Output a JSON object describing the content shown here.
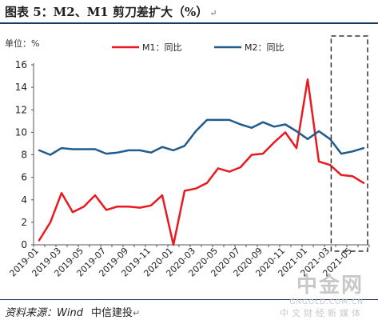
{
  "figure_title": "图表 5：M2、M1 剪刀差扩大（%）",
  "edit_mark": "↵",
  "source_label": "资料来源：Wind",
  "source_org": "中信建投",
  "watermark": {
    "brand": "中金网",
    "url": "GNGOLD.COM.CN",
    "slogan": "中文财经新媒体"
  },
  "colors": {
    "m1": "#e8191f",
    "m2": "#1f5c8c",
    "box": "#333333"
  },
  "chart_data": {
    "type": "line",
    "unit_label": "单位：%",
    "ylim": [
      0,
      16
    ],
    "yticks": [
      0,
      2,
      4,
      6,
      8,
      10,
      12,
      14,
      16
    ],
    "x": [
      "2019-01",
      "2019-02",
      "2019-03",
      "2019-04",
      "2019-05",
      "2019-06",
      "2019-07",
      "2019-08",
      "2019-09",
      "2019-10",
      "2019-11",
      "2019-12",
      "2020-01",
      "2020-02",
      "2020-03",
      "2020-04",
      "2020-05",
      "2020-06",
      "2020-07",
      "2020-08",
      "2020-09",
      "2020-10",
      "2020-11",
      "2020-12",
      "2021-01",
      "2021-02",
      "2021-03",
      "2021-04",
      "2021-05",
      "2021-06"
    ],
    "xtick_labels": [
      "2019-01",
      "2019-03",
      "2019-05",
      "2019-07",
      "2019-09",
      "2019-11",
      "2020-01",
      "2020-03",
      "2020-05",
      "2020-07",
      "2020-09",
      "2020-11",
      "2021-01",
      "2021-03",
      "2021-05"
    ],
    "legend_placement": "top",
    "grid": false,
    "series": [
      {
        "name": "M1：同比",
        "values": [
          0.4,
          2.0,
          4.6,
          2.9,
          3.4,
          4.4,
          3.1,
          3.4,
          3.4,
          3.3,
          3.5,
          4.4,
          0.0,
          4.8,
          5.0,
          5.5,
          6.8,
          6.5,
          6.9,
          8.0,
          8.1,
          9.1,
          10.0,
          8.6,
          14.7,
          7.4,
          7.1,
          6.2,
          6.1,
          5.5
        ]
      },
      {
        "name": "M2：同比",
        "values": [
          8.4,
          8.0,
          8.6,
          8.5,
          8.5,
          8.5,
          8.1,
          8.2,
          8.4,
          8.4,
          8.2,
          8.7,
          8.4,
          8.8,
          10.1,
          11.1,
          11.1,
          11.1,
          10.7,
          10.4,
          10.9,
          10.5,
          10.7,
          10.1,
          9.4,
          10.1,
          9.4,
          8.1,
          8.3,
          8.6
        ]
      }
    ],
    "highlight_box": {
      "from": "2021-04",
      "to": "2021-06",
      "style": "dashed"
    }
  }
}
